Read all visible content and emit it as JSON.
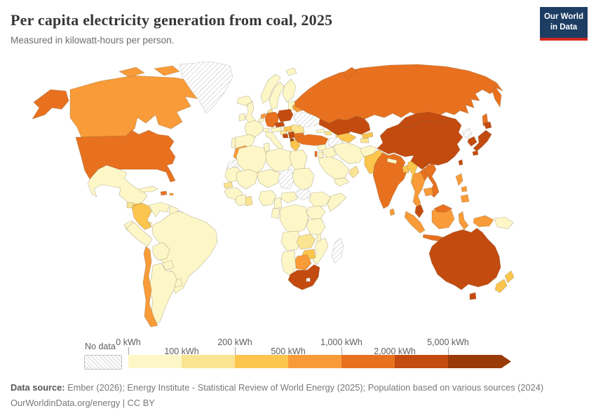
{
  "header": {
    "title": "Per capita electricity generation from coal, 2025",
    "subtitle": "Measured in kilowatt-hours per person.",
    "logo_line1": "Our World",
    "logo_line2": "in Data",
    "logo_bg": "#1d3d63",
    "logo_accent": "#d22a20"
  },
  "legend": {
    "no_data_label": "No data",
    "unit": "kWh",
    "ticks": [
      {
        "label": "0 kWh",
        "row": "top"
      },
      {
        "label": "100 kWh",
        "row": "bottom"
      },
      {
        "label": "200 kWh",
        "row": "top"
      },
      {
        "label": "500 kWh",
        "row": "bottom"
      },
      {
        "label": "1,000 kWh",
        "row": "top"
      },
      {
        "label": "2,000 kWh",
        "row": "bottom"
      },
      {
        "label": "5,000 kWh",
        "row": "top"
      }
    ],
    "colors": [
      "#fdf7c7",
      "#fbe491",
      "#fcc54e",
      "#f99b38",
      "#e8711f",
      "#c44b0f",
      "#9a3a08"
    ],
    "no_data_pattern": "diagonal-hatch"
  },
  "footer": {
    "source_label": "Data source:",
    "source_text": " Ember (2026); Energy Institute - Statistical Review of World Energy (2025); Population based on various sources (2024)",
    "link_text": "OurWorldinData.org/energy | CC BY"
  },
  "chart_data": {
    "type": "choropleth",
    "title": "Per capita electricity generation from coal, 2025",
    "unit": "kWh per person",
    "legend_bins": [
      {
        "label": "No data",
        "color": "hatch"
      },
      {
        "range": "0–100 kWh",
        "color": "#fdf7c7"
      },
      {
        "range": "100–200 kWh",
        "color": "#fbe491"
      },
      {
        "range": "200–500 kWh",
        "color": "#fcc54e"
      },
      {
        "range": "500–1,000 kWh",
        "color": "#f99b38"
      },
      {
        "range": "1,000–2,000 kWh",
        "color": "#e8711f"
      },
      {
        "range": "2,000–5,000 kWh",
        "color": "#c44b0f"
      },
      {
        "range": "5,000+ kWh",
        "color": "#9a3a08"
      }
    ],
    "band_examples": {
      "0-100": [
        "Brazil",
        "Argentina",
        "France",
        "Spain",
        "Norway",
        "Sweden",
        "UK",
        "Italy",
        "Iran",
        "Saudi Arabia",
        "Egypt",
        "Nigeria",
        "DR Congo",
        "Mexico",
        "Peru"
      ],
      "100-200": [
        "Guatemala",
        "Denmark",
        "Romania",
        "Croatia",
        "Zambia",
        "Senegal",
        "Azerbaijan",
        "Oman"
      ],
      "200-500": [
        "Colombia",
        "Honduras",
        "Hungary",
        "Greece",
        "Pakistan",
        "Bangladesh",
        "Myanmar",
        "Uzbekistan",
        "Kyrgyzstan",
        "Zimbabwe",
        "New Zealand"
      ],
      "500-1000": [
        "Canada",
        "Chile",
        "Morocco",
        "Netherlands",
        "Belarus",
        "Thailand",
        "Cambodia",
        "Sri Lanka",
        "Indonesia",
        "Philippines",
        "Botswana"
      ],
      "1000-2000": [
        "United States",
        "Russia",
        "Germany",
        "Turkey",
        "Bulgaria",
        "India",
        "Vietnam",
        "Laos",
        "Israel",
        "Dominican Republic"
      ],
      "2000-5000": [
        "China",
        "Poland",
        "Czechia",
        "Serbia",
        "Kazakhstan",
        "Mongolia",
        "South Korea",
        "Japan",
        "Taiwan",
        "Malaysia",
        "Australia",
        "South Africa"
      ],
      "5000+": [
        "Kosovo"
      ],
      "no_data": [
        "Greenland",
        "Ukraine",
        "Western Sahara",
        "Chad",
        "South Sudan",
        "Madagascar",
        "North Korea",
        "French Guiana",
        "Turkmenistan"
      ]
    }
  },
  "map": {
    "countries": [
      {
        "id": "alaska",
        "band": 4
      },
      {
        "id": "canada",
        "band": 3
      },
      {
        "id": "canadian-island-1",
        "band": 3
      },
      {
        "id": "canadian-island-2",
        "band": 3
      },
      {
        "id": "canadian-island-3",
        "band": 3
      },
      {
        "id": "greenland",
        "band": "no_data"
      },
      {
        "id": "iceland",
        "band": 0
      },
      {
        "id": "usa",
        "band": 4
      },
      {
        "id": "mexico",
        "band": 0
      },
      {
        "id": "guatemala",
        "band": 1
      },
      {
        "id": "honduras",
        "band": 2
      },
      {
        "id": "nicaragua",
        "band": 0
      },
      {
        "id": "costa-rica",
        "band": 0
      },
      {
        "id": "panama",
        "band": 1
      },
      {
        "id": "cuba",
        "band": 0
      },
      {
        "id": "dominican-republic",
        "band": 4
      },
      {
        "id": "puerto-rico",
        "band": 3
      },
      {
        "id": "colombia",
        "band": 2
      },
      {
        "id": "venezuela",
        "band": 0
      },
      {
        "id": "guyana",
        "band": 0
      },
      {
        "id": "french-guiana",
        "band": "no_data"
      },
      {
        "id": "ecuador",
        "band": 0
      },
      {
        "id": "peru",
        "band": 0
      },
      {
        "id": "brazil",
        "band": 0
      },
      {
        "id": "bolivia",
        "band": 0
      },
      {
        "id": "paraguay",
        "band": 0
      },
      {
        "id": "uruguay",
        "band": 0
      },
      {
        "id": "argentina",
        "band": 0
      },
      {
        "id": "chile",
        "band": 3
      },
      {
        "id": "uk",
        "band": 0
      },
      {
        "id": "ireland",
        "band": 0
      },
      {
        "id": "norway",
        "band": 0
      },
      {
        "id": "sweden",
        "band": 0
      },
      {
        "id": "finland",
        "band": 0
      },
      {
        "id": "denmark",
        "band": 1
      },
      {
        "id": "baltics",
        "band": 0
      },
      {
        "id": "netherlands",
        "band": 3
      },
      {
        "id": "belgium",
        "band": 0
      },
      {
        "id": "germany",
        "band": 4
      },
      {
        "id": "poland",
        "band": 5
      },
      {
        "id": "czechia",
        "band": 5
      },
      {
        "id": "austria",
        "band": 0
      },
      {
        "id": "switzerland",
        "band": 0
      },
      {
        "id": "france",
        "band": 0
      },
      {
        "id": "spain",
        "band": 0
      },
      {
        "id": "portugal",
        "band": 0
      },
      {
        "id": "italy",
        "band": 0
      },
      {
        "id": "hungary",
        "band": 2
      },
      {
        "id": "romania",
        "band": 1
      },
      {
        "id": "croatia",
        "band": 1
      },
      {
        "id": "bosnia",
        "band": 5
      },
      {
        "id": "serbia",
        "band": 5
      },
      {
        "id": "kosovo",
        "band": 6
      },
      {
        "id": "bulgaria",
        "band": 4
      },
      {
        "id": "greece",
        "band": 2
      },
      {
        "id": "ukraine",
        "band": "no_data"
      },
      {
        "id": "belarus",
        "band": 3
      },
      {
        "id": "russia",
        "band": 4
      },
      {
        "id": "russia-kamchatka",
        "band": 4
      },
      {
        "id": "sakhalin",
        "band": 4
      },
      {
        "id": "novaya-zemlya",
        "band": 4
      },
      {
        "id": "svalbard",
        "band": 0
      },
      {
        "id": "kazakhstan",
        "band": 5
      },
      {
        "id": "uzbekistan",
        "band": 2
      },
      {
        "id": "turkmenistan",
        "band": "no_data"
      },
      {
        "id": "kyrgyzstan",
        "band": 2
      },
      {
        "id": "tajikistan",
        "band": 1
      },
      {
        "id": "georgia",
        "band": 0
      },
      {
        "id": "azerbaijan",
        "band": 1
      },
      {
        "id": "turkey",
        "band": 4
      },
      {
        "id": "syria",
        "band": 0
      },
      {
        "id": "iraq",
        "band": 0
      },
      {
        "id": "israel",
        "band": 4
      },
      {
        "id": "jordan",
        "band": 0
      },
      {
        "id": "saudi-arabia",
        "band": 0
      },
      {
        "id": "yemen",
        "band": 0
      },
      {
        "id": "oman",
        "band": 1
      },
      {
        "id": "iran",
        "band": 0
      },
      {
        "id": "afghanistan",
        "band": 0
      },
      {
        "id": "pakistan",
        "band": 2
      },
      {
        "id": "india",
        "band": 4
      },
      {
        "id": "nepal",
        "band": 0
      },
      {
        "id": "bangladesh",
        "band": 2
      },
      {
        "id": "sri-lanka",
        "band": 3
      },
      {
        "id": "myanmar",
        "band": 2
      },
      {
        "id": "china",
        "band": 5
      },
      {
        "id": "mongolia",
        "band": 5
      },
      {
        "id": "north-korea",
        "band": "no_data"
      },
      {
        "id": "south-korea",
        "band": 5
      },
      {
        "id": "japan-hokkaido",
        "band": 5
      },
      {
        "id": "japan-honshu",
        "band": 5
      },
      {
        "id": "japan-kyushu",
        "band": 5
      },
      {
        "id": "taiwan",
        "band": 5
      },
      {
        "id": "laos",
        "band": 4
      },
      {
        "id": "vietnam",
        "band": 4
      },
      {
        "id": "thailand",
        "band": 3
      },
      {
        "id": "cambodia",
        "band": 3
      },
      {
        "id": "malaysia",
        "band": 5
      },
      {
        "id": "sumatra",
        "band": 3
      },
      {
        "id": "java",
        "band": 4
      },
      {
        "id": "borneo-indonesia",
        "band": 3
      },
      {
        "id": "borneo-malaysia",
        "band": 4
      },
      {
        "id": "sulawesi",
        "band": 3
      },
      {
        "id": "west-papua",
        "band": 3
      },
      {
        "id": "papua-new-guinea",
        "band": 0
      },
      {
        "id": "philippines-luzon",
        "band": 3
      },
      {
        "id": "philippines-visayas",
        "band": 3
      },
      {
        "id": "philippines-mindanao",
        "band": 3
      },
      {
        "id": "australia",
        "band": 5
      },
      {
        "id": "tasmania",
        "band": 5
      },
      {
        "id": "nz-north",
        "band": 2
      },
      {
        "id": "nz-south",
        "band": 2
      },
      {
        "id": "morocco",
        "band": 3
      },
      {
        "id": "western-sahara",
        "band": "no_data"
      },
      {
        "id": "algeria",
        "band": 0
      },
      {
        "id": "tunisia",
        "band": 0
      },
      {
        "id": "libya",
        "band": 0
      },
      {
        "id": "egypt",
        "band": 0
      },
      {
        "id": "mauritania",
        "band": 0
      },
      {
        "id": "mali",
        "band": 0
      },
      {
        "id": "niger",
        "band": 0
      },
      {
        "id": "chad",
        "band": "no_data"
      },
      {
        "id": "sudan",
        "band": 0
      },
      {
        "id": "south-sudan",
        "band": "no_data"
      },
      {
        "id": "ethiopia",
        "band": 0
      },
      {
        "id": "somalia",
        "band": 0
      },
      {
        "id": "senegal",
        "band": 1
      },
      {
        "id": "guinea-block",
        "band": 0
      },
      {
        "id": "ivory-block",
        "band": 0
      },
      {
        "id": "ghana",
        "band": 1
      },
      {
        "id": "nigeria",
        "band": 0
      },
      {
        "id": "cameroon",
        "band": 0
      },
      {
        "id": "central-african-republic",
        "band": 0
      },
      {
        "id": "drc",
        "band": 0
      },
      {
        "id": "congo-gabon",
        "band": 0
      },
      {
        "id": "uganda-kenya",
        "band": 0
      },
      {
        "id": "tanzania",
        "band": 0
      },
      {
        "id": "angola",
        "band": 0
      },
      {
        "id": "zambia",
        "band": 1
      },
      {
        "id": "malawi",
        "band": 0
      },
      {
        "id": "mozambique",
        "band": 0
      },
      {
        "id": "zimbabwe",
        "band": 2
      },
      {
        "id": "botswana",
        "band": 3
      },
      {
        "id": "namibia",
        "band": 0
      },
      {
        "id": "south-africa",
        "band": 5
      },
      {
        "id": "lesotho",
        "band": "no_data"
      },
      {
        "id": "madagascar",
        "band": "no_data"
      }
    ]
  }
}
